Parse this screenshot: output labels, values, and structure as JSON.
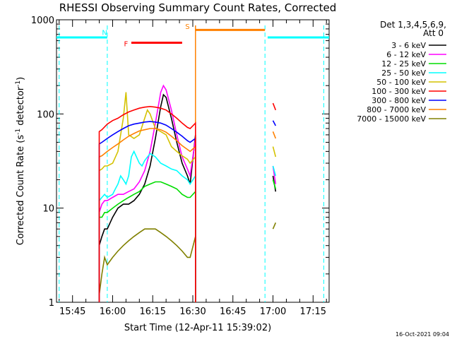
{
  "chart_data": {
    "type": "line",
    "title": "RHESSI Observing Summary Count Rates, Corrected",
    "xlabel": "Start Time (12-Apr-11 15:39:02)",
    "ylabel": "Corrected Count Rate (s",
    "ylabel_sup1": "-1",
    "ylabel_mid": " detector",
    "ylabel_sup2": "-1",
    "ylabel_end": ")",
    "y_scale": "log",
    "ylim": [
      1,
      1000
    ],
    "y_ticks": [
      {
        "v": 1,
        "label": "1"
      },
      {
        "v": 10,
        "label": "10"
      },
      {
        "v": 100,
        "label": "100"
      },
      {
        "v": 1000,
        "label": "1000"
      }
    ],
    "xlim": [
      "15:39",
      "17:21"
    ],
    "x_ticks": [
      "15:45",
      "16:00",
      "16:15",
      "16:30",
      "16:45",
      "17:00",
      "17:15"
    ],
    "timestamp": "16-Oct-2021 09:04",
    "legend": {
      "placement": "right",
      "header": [
        "Det 1,3,4,5,6,9,",
        "Att 0"
      ],
      "entries": [
        {
          "label": "3 - 6 keV",
          "color": "#000000"
        },
        {
          "label": "6 - 12 keV",
          "color": "#ff00ff"
        },
        {
          "label": "12 - 25 keV",
          "color": "#00dd00"
        },
        {
          "label": "25 - 50 keV",
          "color": "#00ffff"
        },
        {
          "label": "50 - 100 keV",
          "color": "#d4c200"
        },
        {
          "label": "100 - 300 keV",
          "color": "#ff0000"
        },
        {
          "label": "300 - 800 keV",
          "color": "#0000ff"
        },
        {
          "label": "800 - 7000 keV",
          "color": "#ff8000"
        },
        {
          "label": "7000 - 15000 keV",
          "color": "#808000"
        }
      ]
    },
    "annotations": [
      {
        "label": "N",
        "color": "#00ffff",
        "x": "15:57"
      },
      {
        "label": "F",
        "color": "#ff0000",
        "x": "16:05"
      },
      {
        "label": "S",
        "color": "#ff8000",
        "x": "16:28"
      }
    ],
    "night_bars": [
      {
        "from": "15:39",
        "to": "15:58",
        "value": 650
      },
      {
        "from": "16:58",
        "to": "17:21",
        "value": 650
      }
    ],
    "night_lines": [
      "15:40",
      "15:58",
      "16:57",
      "17:19"
    ],
    "saa_bar": {
      "from": "16:31",
      "to": "16:57",
      "value": 780
    },
    "saa_lines": [
      "16:31"
    ],
    "flare_bar": {
      "from": "16:07",
      "to": "16:26",
      "value": 570
    },
    "series": [
      {
        "name": "7000 - 15000 keV",
        "color": "#808000",
        "x": [
          "15:55",
          "15:56",
          "15:57",
          "15:58",
          "16:00",
          "16:02",
          "16:04",
          "16:06",
          "16:08",
          "16:10",
          "16:12",
          "16:14",
          "16:16",
          "16:18",
          "16:20",
          "16:22",
          "16:24",
          "16:26",
          "16:28",
          "16:29",
          "16:31",
          "17:00",
          "17:01"
        ],
        "values": [
          1.2,
          2,
          3,
          2.5,
          3,
          3.5,
          4,
          4.5,
          5,
          5.5,
          6,
          6,
          6,
          5.5,
          5,
          4.5,
          4,
          3.5,
          3,
          3,
          5,
          6,
          7
        ]
      },
      {
        "name": "3 - 6 keV",
        "color": "#000000",
        "x": [
          "15:55",
          "15:56",
          "15:57",
          "15:58",
          "16:00",
          "16:02",
          "16:04",
          "16:06",
          "16:08",
          "16:10",
          "16:12",
          "16:14",
          "16:16",
          "16:18",
          "16:19",
          "16:20",
          "16:22",
          "16:24",
          "16:26",
          "16:28",
          "16:29",
          "16:31",
          "17:00",
          "17:01"
        ],
        "values": [
          4,
          5,
          6,
          6,
          8,
          10,
          11,
          11,
          12,
          14,
          18,
          28,
          55,
          120,
          160,
          150,
          90,
          50,
          30,
          22,
          18,
          60,
          22,
          15
        ]
      },
      {
        "name": "6 - 12 keV",
        "color": "#ff00ff",
        "x": [
          "15:55",
          "15:56",
          "15:57",
          "15:58",
          "16:00",
          "16:02",
          "16:04",
          "16:06",
          "16:08",
          "16:10",
          "16:12",
          "16:14",
          "16:16",
          "16:18",
          "16:19",
          "16:20",
          "16:22",
          "16:24",
          "16:26",
          "16:28",
          "16:29",
          "16:31",
          "17:00",
          "17:01"
        ],
        "values": [
          9,
          11,
          12,
          12,
          13,
          14,
          14,
          15,
          16,
          19,
          25,
          40,
          80,
          170,
          200,
          180,
          110,
          60,
          35,
          26,
          22,
          55,
          28,
          18
        ]
      },
      {
        "name": "12 - 25 keV",
        "color": "#00dd00",
        "x": [
          "15:55",
          "15:56",
          "15:57",
          "15:58",
          "16:00",
          "16:02",
          "16:04",
          "16:06",
          "16:08",
          "16:10",
          "16:12",
          "16:14",
          "16:16",
          "16:18",
          "16:20",
          "16:22",
          "16:24",
          "16:26",
          "16:28",
          "16:29",
          "16:31",
          "17:00",
          "17:01"
        ],
        "values": [
          8,
          8,
          9,
          9,
          10,
          11,
          12,
          13,
          14,
          15,
          17,
          18,
          19,
          19,
          18,
          17,
          16,
          14,
          13,
          13,
          15,
          20,
          16
        ]
      },
      {
        "name": "25 - 50 keV",
        "color": "#00ffff",
        "x": [
          "15:55",
          "15:56",
          "15:57",
          "15:58",
          "16:00",
          "16:01",
          "16:02",
          "16:03",
          "16:04",
          "16:05",
          "16:06",
          "16:07",
          "16:08",
          "16:10",
          "16:11",
          "16:12",
          "16:14",
          "16:16",
          "16:18",
          "16:20",
          "16:22",
          "16:24",
          "16:26",
          "16:28",
          "16:29",
          "16:31",
          "17:00",
          "17:01"
        ],
        "values": [
          12,
          13,
          14,
          13,
          14,
          16,
          18,
          22,
          20,
          18,
          22,
          35,
          40,
          30,
          28,
          32,
          38,
          35,
          30,
          28,
          26,
          25,
          22,
          20,
          18,
          22,
          28,
          22
        ]
      },
      {
        "name": "50 - 100 keV",
        "color": "#d4c200",
        "x": [
          "15:55",
          "15:56",
          "15:57",
          "15:58",
          "16:00",
          "16:02",
          "16:04",
          "16:05",
          "16:06",
          "16:08",
          "16:10",
          "16:12",
          "16:13",
          "16:14",
          "16:16",
          "16:18",
          "16:20",
          "16:22",
          "16:24",
          "16:26",
          "16:28",
          "16:29",
          "16:31",
          "17:00",
          "17:01"
        ],
        "values": [
          25,
          26,
          28,
          28,
          30,
          40,
          90,
          170,
          60,
          55,
          60,
          90,
          110,
          100,
          70,
          65,
          60,
          45,
          40,
          36,
          33,
          30,
          35,
          45,
          35
        ]
      },
      {
        "name": "800 - 7000 keV",
        "color": "#ff8000",
        "x": [
          "15:55",
          "15:56",
          "15:58",
          "16:00",
          "16:02",
          "16:04",
          "16:06",
          "16:08",
          "16:10",
          "16:12",
          "16:14",
          "16:16",
          "16:18",
          "16:20",
          "16:22",
          "16:24",
          "16:26",
          "16:28",
          "16:29",
          "16:31",
          "17:00",
          "17:01"
        ],
        "values": [
          35,
          36,
          40,
          44,
          48,
          53,
          58,
          62,
          66,
          68,
          70,
          70,
          68,
          64,
          58,
          52,
          46,
          42,
          40,
          45,
          65,
          55
        ]
      },
      {
        "name": "300 - 800 keV",
        "color": "#0000ff",
        "x": [
          "15:55",
          "15:56",
          "15:58",
          "16:00",
          "16:02",
          "16:04",
          "16:06",
          "16:08",
          "16:10",
          "16:12",
          "16:14",
          "16:16",
          "16:18",
          "16:20",
          "16:22",
          "16:24",
          "16:26",
          "16:28",
          "16:29",
          "16:31",
          "17:00",
          "17:01"
        ],
        "values": [
          48,
          50,
          55,
          60,
          65,
          70,
          75,
          78,
          80,
          82,
          83,
          82,
          80,
          76,
          70,
          64,
          58,
          52,
          50,
          55,
          85,
          75
        ]
      },
      {
        "name": "100 - 300 keV",
        "color": "#ff0000",
        "x": [
          "15:55",
          "15:56",
          "15:58",
          "16:00",
          "16:02",
          "16:04",
          "16:06",
          "16:08",
          "16:10",
          "16:12",
          "16:14",
          "16:16",
          "16:18",
          "16:20",
          "16:22",
          "16:24",
          "16:26",
          "16:28",
          "16:29",
          "16:31",
          "17:00",
          "17:01"
        ],
        "values": [
          65,
          68,
          78,
          85,
          90,
          98,
          105,
          110,
          115,
          118,
          120,
          118,
          115,
          110,
          100,
          90,
          80,
          72,
          70,
          80,
          130,
          110
        ]
      }
    ]
  }
}
